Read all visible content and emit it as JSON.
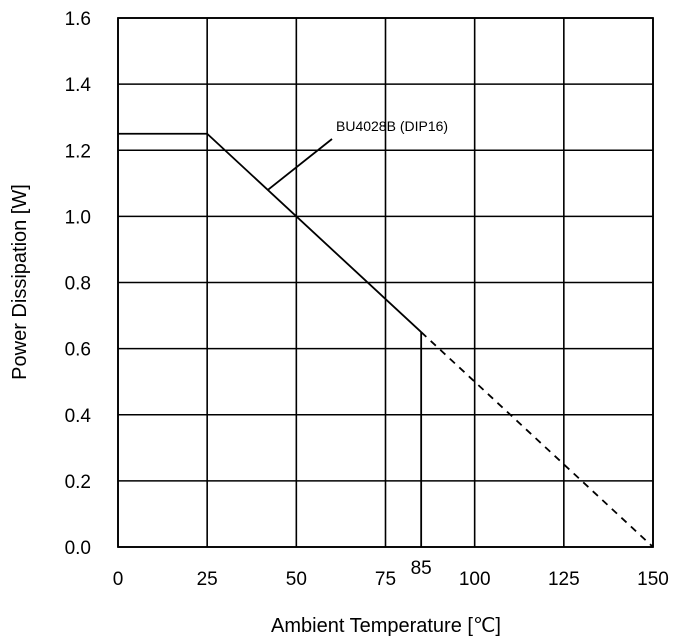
{
  "chart_data": {
    "type": "line",
    "xlabel": "Ambient Temperature [℃]",
    "ylabel": "Power Dissipation [W]",
    "xlim": [
      0,
      150
    ],
    "ylim": [
      0,
      1.6
    ],
    "xticks": [
      "0",
      "25",
      "50",
      "75",
      "100",
      "125",
      "150"
    ],
    "yticks": [
      "0.0",
      "0.2",
      "0.4",
      "0.6",
      "0.8",
      "1.0",
      "1.2",
      "1.4",
      "1.6"
    ],
    "grid": true,
    "series": [
      {
        "name": "BU4028B (DIP16)",
        "style": "solid",
        "x": [
          0,
          25,
          85
        ],
        "y": [
          1.25,
          1.25,
          0.65
        ]
      },
      {
        "style": "dashed",
        "x": [
          85,
          150
        ],
        "y": [
          0.65,
          0
        ]
      }
    ],
    "marker_line": {
      "x": 85,
      "label": "85",
      "y_top": 0.65
    },
    "annotation": {
      "text": "BU4028B (DIP16)"
    }
  }
}
